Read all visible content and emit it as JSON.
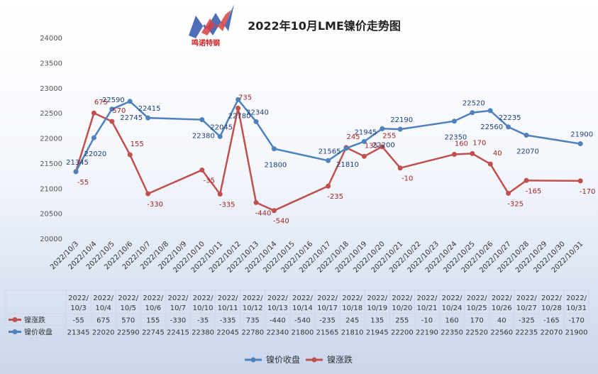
{
  "logo": {
    "text": "鸣诺特钢"
  },
  "chart_data": {
    "type": "line",
    "title": "2022年10月LME镍价走势图",
    "categories": [
      "2022/10/3",
      "2022/10/4",
      "2022/10/5",
      "2022/10/6",
      "2022/10/7",
      "2022/10/8",
      "2022/10/9",
      "2022/10/10",
      "2022/10/11",
      "2022/10/12",
      "2022/10/13",
      "2022/10/14",
      "2022/10/15",
      "2022/10/16",
      "2022/10/17",
      "2022/10/18",
      "2022/10/19",
      "2022/10/20",
      "2022/10/21",
      "2022/10/22",
      "2022/10/23",
      "2022/10/24",
      "2022/10/25",
      "2022/10/26",
      "2022/10/27",
      "2022/10/28",
      "2022/10/29",
      "2022/10/30",
      "2022/10/31"
    ],
    "ylim": [
      20000,
      24000
    ],
    "yticks": [
      20000,
      20500,
      21000,
      21500,
      22000,
      22500,
      23000,
      23500,
      24000
    ],
    "grid": false,
    "legend_position": "bottom",
    "series": [
      {
        "name": "镍价收盘",
        "color": "#4f81bd",
        "points": [
          {
            "x": "2022/10/3",
            "y": 21345
          },
          {
            "x": "2022/10/4",
            "y": 22020
          },
          {
            "x": "2022/10/5",
            "y": 22590
          },
          {
            "x": "2022/10/6",
            "y": 22745
          },
          {
            "x": "2022/10/7",
            "y": 22415
          },
          {
            "x": "2022/10/10",
            "y": 22380
          },
          {
            "x": "2022/10/11",
            "y": 22045
          },
          {
            "x": "2022/10/12",
            "y": 22780
          },
          {
            "x": "2022/10/13",
            "y": 22340
          },
          {
            "x": "2022/10/14",
            "y": 21800
          },
          {
            "x": "2022/10/17",
            "y": 21565
          },
          {
            "x": "2022/10/18",
            "y": 21810
          },
          {
            "x": "2022/10/19",
            "y": 21945
          },
          {
            "x": "2022/10/20",
            "y": 22200
          },
          {
            "x": "2022/10/21",
            "y": 22190
          },
          {
            "x": "2022/10/24",
            "y": 22350
          },
          {
            "x": "2022/10/25",
            "y": 22520
          },
          {
            "x": "2022/10/26",
            "y": 22560
          },
          {
            "x": "2022/10/27",
            "y": 22235
          },
          {
            "x": "2022/10/28",
            "y": 22070
          },
          {
            "x": "2022/10/31",
            "y": 21900
          }
        ]
      },
      {
        "name": "镍涨跌",
        "color": "#c0504d",
        "points": [
          {
            "x": "2022/10/3",
            "y": -55
          },
          {
            "x": "2022/10/4",
            "y": 675
          },
          {
            "x": "2022/10/5",
            "y": 570
          },
          {
            "x": "2022/10/6",
            "y": 155
          },
          {
            "x": "2022/10/7",
            "y": -330
          },
          {
            "x": "2022/10/10",
            "y": -35
          },
          {
            "x": "2022/10/11",
            "y": -335
          },
          {
            "x": "2022/10/12",
            "y": 735
          },
          {
            "x": "2022/10/13",
            "y": -440
          },
          {
            "x": "2022/10/14",
            "y": -540
          },
          {
            "x": "2022/10/17",
            "y": -235
          },
          {
            "x": "2022/10/18",
            "y": 245
          },
          {
            "x": "2022/10/19",
            "y": 135
          },
          {
            "x": "2022/10/20",
            "y": 255
          },
          {
            "x": "2022/10/21",
            "y": -10
          },
          {
            "x": "2022/10/24",
            "y": 160
          },
          {
            "x": "2022/10/25",
            "y": 170
          },
          {
            "x": "2022/10/26",
            "y": 40
          },
          {
            "x": "2022/10/27",
            "y": -325
          },
          {
            "x": "2022/10/28",
            "y": -165
          },
          {
            "x": "2022/10/31",
            "y": -170
          }
        ]
      }
    ],
    "table": {
      "headers": [
        "2022/\n10/3",
        "2022/\n10/4",
        "2022/\n10/5",
        "2022/\n10/6",
        "2022/\n10/7",
        "2022/\n10/10",
        "2022/\n10/11",
        "2022/\n10/12",
        "2022/\n10/13",
        "2022/\n10/14",
        "2022/\n10/17",
        "2022/\n10/18",
        "2022/\n10/19",
        "2022/\n10/20",
        "2022/\n10/21",
        "2022/\n10/24",
        "2022/\n10/25",
        "2022/\n10/26",
        "2022/\n10/27",
        "2022/\n10/28",
        "2022/\n10/31"
      ],
      "rows": [
        {
          "label": "镍涨跌",
          "values": [
            "-55",
            "675",
            "570",
            "155",
            "-330",
            "-35",
            "-335",
            "735",
            "-440",
            "-540",
            "-235",
            "245",
            "135",
            "255",
            "-10",
            "160",
            "170",
            "40",
            "-325",
            "-165",
            "-170"
          ]
        },
        {
          "label": "镍价收盘",
          "values": [
            "21345",
            "22020",
            "22590",
            "22745",
            "22415",
            "22380",
            "22045",
            "22780",
            "22340",
            "21800",
            "21565",
            "21810",
            "21945",
            "22200",
            "22190",
            "22350",
            "22520",
            "22560",
            "22235",
            "22070",
            "21900"
          ]
        }
      ]
    }
  }
}
